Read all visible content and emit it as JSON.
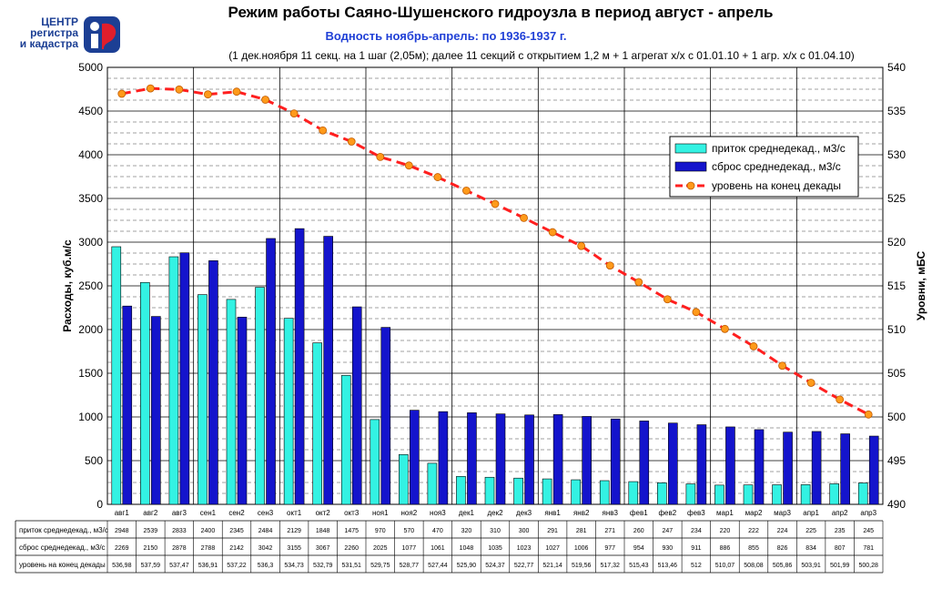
{
  "logo": {
    "line1": "ЦЕНТР",
    "line2": "регистра",
    "line3": "и кадастра"
  },
  "header": {
    "title": "Режим работы Саяно-Шушенского гидроузла в период август - апрель",
    "subtitle": "Водность ноябрь-апрель: по 1936-1937 г.",
    "note": "(1 дек.ноября 11 секц. на 1 шаг (2,05м); далее 11 секций с открытием 1,2 м + 1 агрегат х/х с 01.01.10 + 1 агр. х/х с 01.04.10)"
  },
  "colors": {
    "inflow": "#33f2e3",
    "outflow": "#1414cc",
    "level_line": "#ff1f1f",
    "level_marker": "#ff9a1a"
  },
  "chart_data": {
    "type": "bar",
    "categories": [
      "авг1",
      "авг2",
      "авг3",
      "сен1",
      "сен2",
      "сен3",
      "окт1",
      "окт2",
      "окт3",
      "ноя1",
      "ноя2",
      "ноя3",
      "дек1",
      "дек2",
      "дек3",
      "янв1",
      "янв2",
      "янв3",
      "фев1",
      "фев2",
      "фев3",
      "мар1",
      "мар2",
      "мар3",
      "апр1",
      "апр2",
      "апр3"
    ],
    "series": [
      {
        "name": "приток среднедекад., м3/с",
        "kind": "bar",
        "axis": "left",
        "values": [
          2948,
          2539,
          2833,
          2400,
          2345,
          2484,
          2129,
          1848,
          1475,
          970,
          570,
          470,
          320,
          310,
          300,
          291,
          281,
          271,
          260,
          247,
          234,
          220,
          222,
          224,
          225,
          235,
          245
        ],
        "table_labels": [
          "2948",
          "2539",
          "2833",
          "2400",
          "2345",
          "2484",
          "2129",
          "1848",
          "1475",
          "970",
          "570",
          "470",
          "320",
          "310",
          "300",
          "291",
          "281",
          "271",
          "260",
          "247",
          "234",
          "220",
          "222",
          "224",
          "225",
          "235",
          "245"
        ]
      },
      {
        "name": "сброс среднедекад., м3/с",
        "kind": "bar",
        "axis": "left",
        "values": [
          2269,
          2150,
          2878,
          2788,
          2142,
          3042,
          3155,
          3067,
          2260,
          2025,
          1077,
          1061,
          1048,
          1035,
          1023,
          1027,
          1006,
          977,
          954,
          930,
          911,
          886,
          855,
          826,
          834,
          807,
          781
        ],
        "table_labels": [
          "2269",
          "2150",
          "2878",
          "2788",
          "2142",
          "3042",
          "3155",
          "3067",
          "2260",
          "2025",
          "1077",
          "1061",
          "1048",
          "1035",
          "1023",
          "1027",
          "1006",
          "977",
          "954",
          "930",
          "911",
          "886",
          "855",
          "826",
          "834",
          "807",
          "781"
        ]
      },
      {
        "name": "уровень на конец декады",
        "kind": "line",
        "axis": "right",
        "values": [
          536.98,
          537.59,
          537.47,
          536.91,
          537.22,
          536.3,
          534.73,
          532.79,
          531.51,
          529.75,
          528.77,
          527.44,
          525.9,
          524.37,
          522.77,
          521.14,
          519.56,
          517.32,
          515.43,
          513.46,
          512,
          510.07,
          508.08,
          505.86,
          503.91,
          501.99,
          500.28
        ],
        "table_labels": [
          "536,98",
          "537,59",
          "537,47",
          "536,91",
          "537,22",
          "536,3",
          "534,73",
          "532,79",
          "531,51",
          "529,75",
          "528,77",
          "527,44",
          "525,90",
          "524,37",
          "522,77",
          "521,14",
          "519,56",
          "517,32",
          "515,43",
          "513,46",
          "512",
          "510,07",
          "508,08",
          "505,86",
          "503,91",
          "501,99",
          "500,28"
        ]
      }
    ],
    "ylabel": "Расходы, куб.м/с",
    "ylabel_right": "Уровни, мБС",
    "ylim": [
      0,
      5000
    ],
    "ylim_right": [
      490,
      540
    ],
    "yticks": [
      "0",
      "500",
      "1000",
      "1500",
      "2000",
      "2500",
      "3000",
      "3500",
      "4000",
      "4500",
      "5000"
    ],
    "yticks_right": [
      "490",
      "495",
      "500",
      "505",
      "510",
      "515",
      "520",
      "525",
      "530",
      "535",
      "540"
    ],
    "grid": true,
    "legend_position": "right"
  }
}
